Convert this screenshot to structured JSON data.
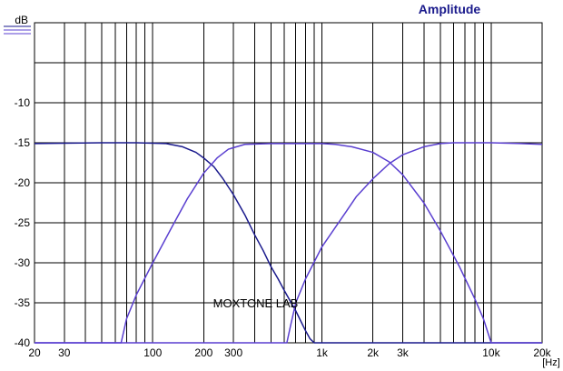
{
  "chart_data": {
    "type": "line",
    "title": "Amplitude",
    "ylabel": "dB",
    "xlabel": "[Hz]",
    "x_scale": "log",
    "xlim": [
      20,
      20000
    ],
    "ylim": [
      -40,
      0
    ],
    "grid": true,
    "x_tick_labels": [
      {
        "value": 20,
        "label": "20"
      },
      {
        "value": 30,
        "label": "30"
      },
      {
        "value": 100,
        "label": "100"
      },
      {
        "value": 200,
        "label": "200"
      },
      {
        "value": 300,
        "label": "300"
      },
      {
        "value": 1000,
        "label": "1k"
      },
      {
        "value": 2000,
        "label": "2k"
      },
      {
        "value": 3000,
        "label": "3k"
      },
      {
        "value": 10000,
        "label": "10k"
      },
      {
        "value": 20000,
        "label": "20k"
      }
    ],
    "y_tick_labels": [
      {
        "value": -10,
        "label": "-10"
      },
      {
        "value": -15,
        "label": "-15"
      },
      {
        "value": -20,
        "label": "-20"
      },
      {
        "value": -25,
        "label": "-25"
      },
      {
        "value": -30,
        "label": "-30"
      },
      {
        "value": -35,
        "label": "-35"
      },
      {
        "value": -40,
        "label": "-40"
      }
    ],
    "series": [
      {
        "color": "#1a1a8c",
        "points": [
          [
            20,
            -15.1
          ],
          [
            50,
            -15.0
          ],
          [
            80,
            -15.0
          ],
          [
            120,
            -15.1
          ],
          [
            150,
            -15.5
          ],
          [
            180,
            -16.2
          ],
          [
            200,
            -16.9
          ],
          [
            230,
            -18.0
          ],
          [
            260,
            -19.5
          ],
          [
            300,
            -21.5
          ],
          [
            350,
            -24.0
          ],
          [
            400,
            -26.5
          ],
          [
            450,
            -28.5
          ],
          [
            500,
            -30.5
          ],
          [
            550,
            -32.0
          ],
          [
            600,
            -33.5
          ],
          [
            650,
            -34.8
          ],
          [
            700,
            -36.0
          ],
          [
            750,
            -37.3
          ],
          [
            800,
            -38.5
          ],
          [
            850,
            -39.5
          ],
          [
            900,
            -40.0
          ],
          [
            20000,
            -40.0
          ]
        ]
      },
      {
        "color": "#5a3fd0",
        "points": [
          [
            20,
            -40.0
          ],
          [
            65,
            -40.0
          ],
          [
            70,
            -37.0
          ],
          [
            80,
            -34.0
          ],
          [
            100,
            -30.0
          ],
          [
            130,
            -25.5
          ],
          [
            160,
            -22.0
          ],
          [
            200,
            -18.8
          ],
          [
            240,
            -16.9
          ],
          [
            280,
            -15.8
          ],
          [
            350,
            -15.2
          ],
          [
            500,
            -15.1
          ],
          [
            800,
            -15.1
          ],
          [
            1000,
            -15.1
          ],
          [
            1200,
            -15.2
          ],
          [
            1500,
            -15.5
          ],
          [
            2000,
            -16.2
          ],
          [
            2500,
            -17.4
          ],
          [
            3000,
            -19.0
          ],
          [
            4000,
            -22.5
          ],
          [
            5000,
            -26.0
          ],
          [
            6500,
            -30.5
          ],
          [
            8000,
            -34.5
          ],
          [
            9000,
            -37.0
          ],
          [
            10000,
            -40.0
          ],
          [
            20000,
            -40.0
          ]
        ]
      },
      {
        "color": "#5a3fd0",
        "points": [
          [
            20,
            -40.0
          ],
          [
            620,
            -40.0
          ],
          [
            650,
            -38.0
          ],
          [
            700,
            -35.0
          ],
          [
            800,
            -32.0
          ],
          [
            1000,
            -28.0
          ],
          [
            1300,
            -24.5
          ],
          [
            1600,
            -21.7
          ],
          [
            2000,
            -19.5
          ],
          [
            2500,
            -17.6
          ],
          [
            3000,
            -16.5
          ],
          [
            4000,
            -15.5
          ],
          [
            5000,
            -15.1
          ],
          [
            6000,
            -15.0
          ],
          [
            10000,
            -15.0
          ],
          [
            15000,
            -15.1
          ],
          [
            20000,
            -15.2
          ]
        ]
      }
    ],
    "annotations": [
      {
        "text": "MOXTONE LAB",
        "x": 800,
        "y": -35
      }
    ]
  }
}
